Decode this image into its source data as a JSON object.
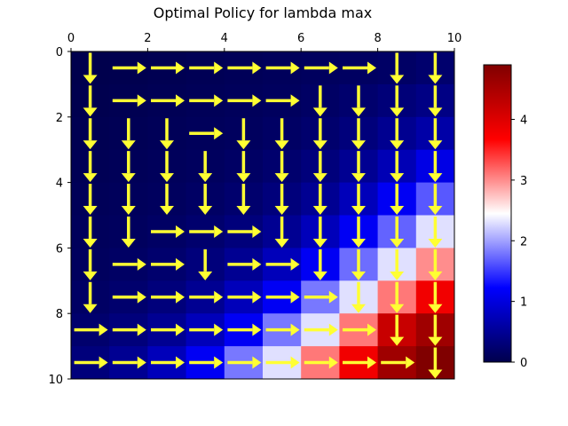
{
  "chart_data": {
    "type": "heatmap",
    "title": "Optimal Policy for lambda max",
    "x_ticks": [
      "0",
      "2",
      "4",
      "6",
      "8",
      "10"
    ],
    "y_ticks": [
      "0",
      "2",
      "4",
      "6",
      "8",
      "10"
    ],
    "xlim": [
      0,
      10
    ],
    "ylim": [
      10,
      0
    ],
    "colormap": "seismic",
    "colorbar": {
      "range": [
        0,
        4.9
      ],
      "ticks": [
        "0",
        "1",
        "2",
        "3",
        "4"
      ],
      "placement": "right"
    },
    "arrow_color": "#ffff33",
    "values": [
      [
        0.0,
        0.02,
        0.04,
        0.06,
        0.08,
        0.1,
        0.12,
        0.14,
        0.17,
        0.22
      ],
      [
        0.02,
        0.04,
        0.06,
        0.08,
        0.1,
        0.12,
        0.16,
        0.22,
        0.3,
        0.38
      ],
      [
        0.04,
        0.06,
        0.08,
        0.1,
        0.12,
        0.16,
        0.22,
        0.32,
        0.46,
        0.62
      ],
      [
        0.06,
        0.08,
        0.1,
        0.12,
        0.16,
        0.22,
        0.32,
        0.48,
        0.72,
        1.05
      ],
      [
        0.08,
        0.1,
        0.12,
        0.16,
        0.22,
        0.32,
        0.48,
        0.75,
        1.15,
        1.65
      ],
      [
        0.1,
        0.12,
        0.16,
        0.22,
        0.32,
        0.48,
        0.75,
        1.15,
        1.7,
        2.3
      ],
      [
        0.12,
        0.16,
        0.22,
        0.32,
        0.48,
        0.75,
        1.15,
        1.75,
        2.3,
        3.0
      ],
      [
        0.16,
        0.22,
        0.32,
        0.48,
        0.75,
        1.15,
        1.8,
        2.3,
        3.1,
        3.8
      ],
      [
        0.22,
        0.32,
        0.48,
        0.75,
        1.15,
        1.8,
        2.3,
        3.1,
        4.2,
        4.6
      ],
      [
        0.32,
        0.48,
        0.75,
        1.15,
        1.8,
        2.3,
        3.1,
        3.8,
        4.6,
        4.9
      ]
    ],
    "policy": [
      [
        "D",
        "R",
        "R",
        "R",
        "R",
        "R",
        "R",
        "R",
        "D",
        "D"
      ],
      [
        "D",
        "R",
        "R",
        "R",
        "R",
        "R",
        "D",
        "D",
        "D",
        "D"
      ],
      [
        "D",
        "D",
        "D",
        "R",
        "D",
        "D",
        "D",
        "D",
        "D",
        "D"
      ],
      [
        "D",
        "D",
        "D",
        "D",
        "D",
        "D",
        "D",
        "D",
        "D",
        "D"
      ],
      [
        "D",
        "D",
        "D",
        "D",
        "D",
        "D",
        "D",
        "D",
        "D",
        "D"
      ],
      [
        "D",
        "D",
        "R",
        "R",
        "R",
        "D",
        "D",
        "D",
        "D",
        "D"
      ],
      [
        "D",
        "R",
        "R",
        "D",
        "R",
        "R",
        "D",
        "D",
        "D",
        "D"
      ],
      [
        "D",
        "R",
        "R",
        "R",
        "R",
        "R",
        "R",
        "D",
        "D",
        "D"
      ],
      [
        "R",
        "R",
        "R",
        "R",
        "R",
        "R",
        "R",
        "R",
        "D",
        "D"
      ],
      [
        "R",
        "R",
        "R",
        "R",
        "R",
        "R",
        "R",
        "R",
        "R",
        "D"
      ]
    ]
  }
}
